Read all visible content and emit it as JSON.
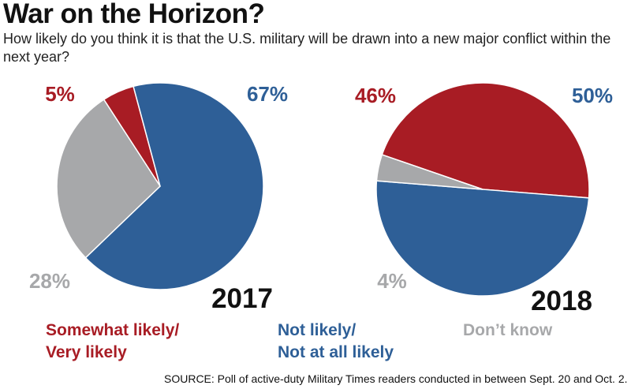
{
  "header": {
    "title": "War on the Horizon?",
    "subtitle": "How likely do you think it is that the U.S. military will be drawn into a new major conflict within the next year?"
  },
  "colors": {
    "likely": "#a81c24",
    "not_likely": "#2e5f97",
    "dont_know": "#a7a8aa"
  },
  "chart_data": [
    {
      "type": "pie",
      "title": "2017",
      "categories": [
        "Somewhat likely/ Very likely",
        "Not likely/ Not at all likely",
        "Don't know"
      ],
      "values": [
        5,
        67,
        28
      ],
      "value_labels": [
        "5%",
        "67%",
        "28%"
      ]
    },
    {
      "type": "pie",
      "title": "2018",
      "categories": [
        "Somewhat likely/ Very likely",
        "Not likely/ Not at all likely",
        "Don't know"
      ],
      "values": [
        46,
        50,
        4
      ],
      "value_labels": [
        "46%",
        "50%",
        "4%"
      ]
    }
  ],
  "legend": [
    {
      "line1": "Somewhat likely/",
      "line2": "Very likely"
    },
    {
      "line1": "Not likely/",
      "line2": "Not at all likely"
    },
    {
      "line1": "Don’t know",
      "line2": ""
    }
  ],
  "source": "SOURCE: Poll of active-duty Military Times readers conducted in between Sept. 20 and Oct. 2."
}
